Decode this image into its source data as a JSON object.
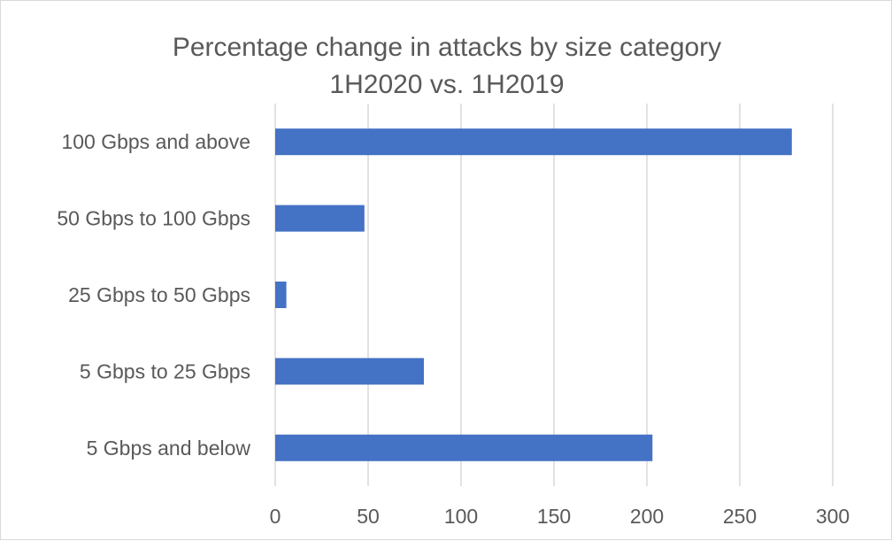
{
  "chart_data": {
    "type": "bar",
    "orientation": "horizontal",
    "title": "Percentage change in attacks by size category",
    "subtitle": "1H2020 vs. 1H2019",
    "xlabel": "",
    "ylabel": "",
    "categories": [
      "100 Gbps and above",
      "50 Gbps to 100 Gbps",
      "25 Gbps to 50 Gbps",
      "5 Gbps to 25 Gbps",
      "5 Gbps and below"
    ],
    "values": [
      278,
      48,
      6,
      80,
      203
    ],
    "xlim": [
      0,
      300
    ],
    "ticks": [
      0,
      50,
      100,
      150,
      200,
      250,
      300
    ],
    "tick_labels": [
      "0",
      "50",
      "100",
      "150",
      "200",
      "250",
      "300"
    ],
    "grid": true,
    "legend": "none",
    "bar_color": "#4472C4"
  }
}
